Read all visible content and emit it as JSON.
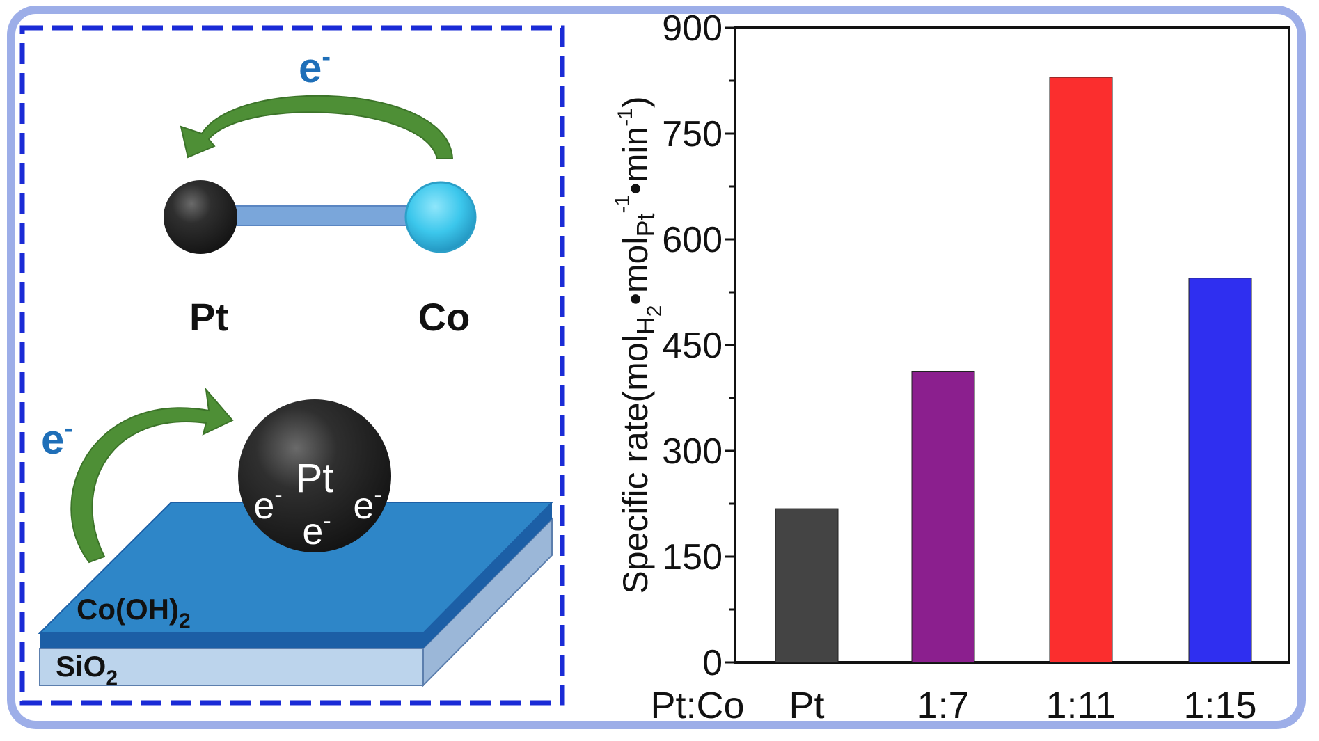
{
  "schematic": {
    "electron_top": "e",
    "electron_top_sup": "-",
    "atom_left_label": "Pt",
    "atom_right_label": "Co",
    "electron_left": "e",
    "electron_left_sup": "-",
    "particle_label": "Pt",
    "particle_electron": "e",
    "particle_electron_sup": "-",
    "layer_top_label": "Co(OH)",
    "layer_top_sub": "2",
    "layer_bottom_label": "SiO",
    "layer_bottom_sub": "2",
    "colors": {
      "dashed_border": "#1a2bd6",
      "arrow_green": "#4e8f36",
      "electron_text": "#1f6fb8",
      "pt_atom": "#2e2e2e",
      "co_atom": "#3cc7ec",
      "bond": "#7aa6da",
      "plate_top": "#2e86c8",
      "plate_edge": "#1c5fa6",
      "sio2": "#bcd4ec"
    }
  },
  "chart_data": {
    "type": "bar",
    "categories": [
      "Pt",
      "1:7",
      "1:11",
      "1:15"
    ],
    "category_axis_label": "Pt:Co",
    "values": [
      218,
      413,
      830,
      545
    ],
    "colors": [
      "#444444",
      "#8b1f8e",
      "#fb2e2e",
      "#2f2ff0"
    ],
    "ylabel_parts": [
      "Specific rate(mol",
      "H",
      "2",
      "•mol",
      "Pt",
      "-1",
      "•min",
      "-1",
      ")"
    ],
    "ylim": [
      0,
      900
    ],
    "yticks": [
      0,
      150,
      300,
      450,
      600,
      750,
      900
    ],
    "grid": false
  }
}
